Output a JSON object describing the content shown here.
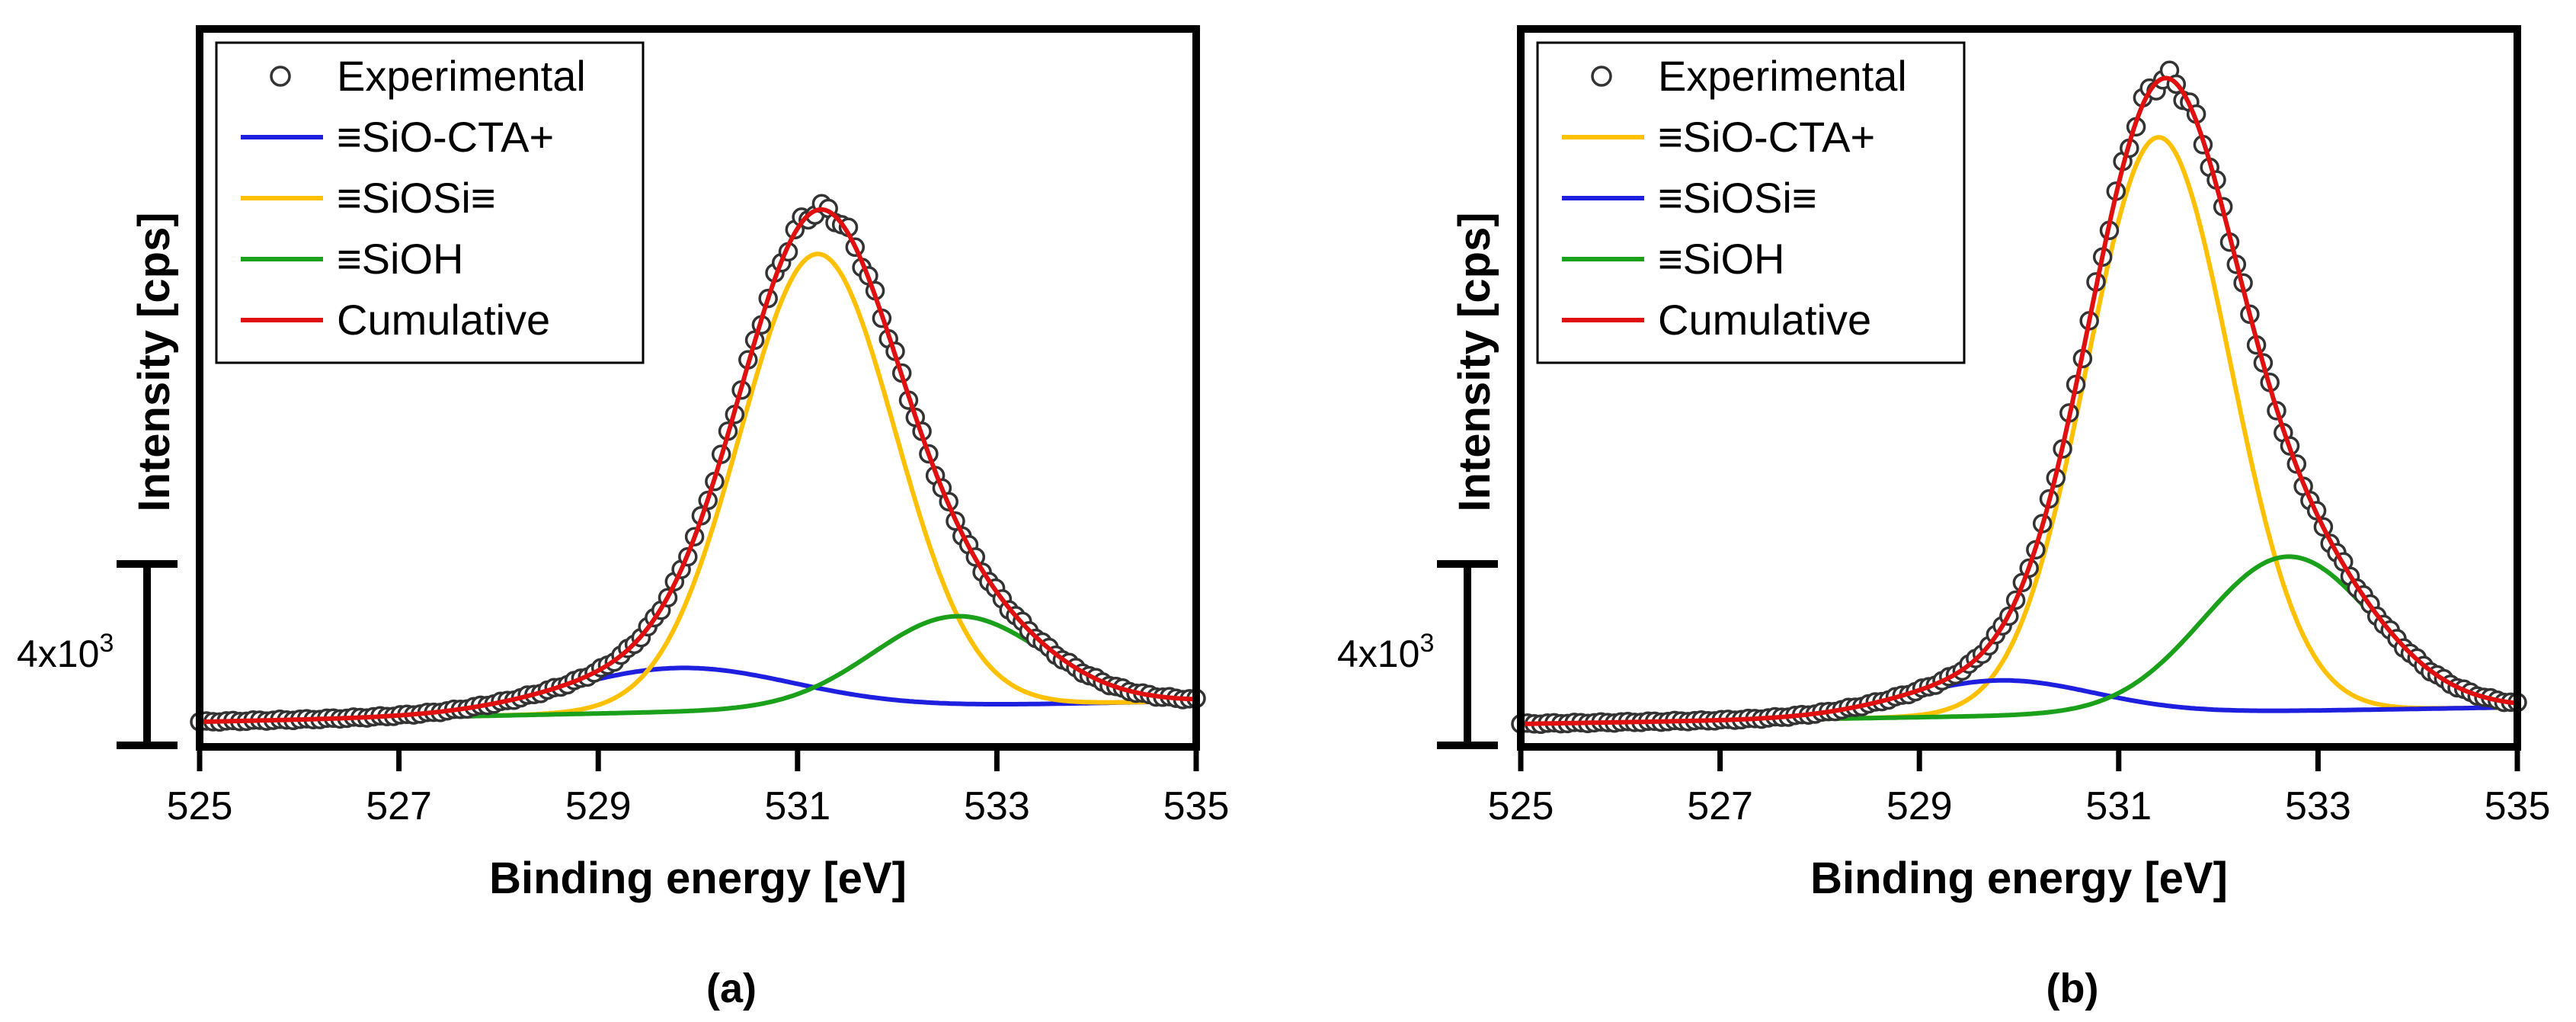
{
  "figure": {
    "panels_label": [
      "(a)",
      "(b)"
    ]
  },
  "chart_data": [
    {
      "type": "line",
      "panel": "(a)",
      "xlabel": "Binding energy [eV]",
      "ylabel": "Intensity [cps]",
      "xlim": [
        525,
        535
      ],
      "ylim": [
        800,
        18000
      ],
      "xticks": [
        "525",
        "527",
        "529",
        "531",
        "533",
        "535"
      ],
      "scale_bar": {
        "label": "4x10",
        "exponent": "3",
        "value": 4000
      },
      "legend": [
        {
          "name": "Experimental",
          "marker": "circle"
        },
        {
          "name": "≡SiO-CTA+",
          "color": "#1f1fe0"
        },
        {
          "name": "≡SiOSi≡",
          "color": "#ffc000"
        },
        {
          "name": "≡SiOH",
          "color": "#1aa01a"
        },
        {
          "name": "Cumulative",
          "color": "#e01010"
        }
      ],
      "series": [
        {
          "name": "≡SiO-CTA+",
          "color": "#1f1fe0",
          "type": "gaussian",
          "center": 529.8,
          "sigma": 1.15,
          "amplitude": 1050
        },
        {
          "name": "≡SiOSi≡",
          "color": "#ffc000",
          "type": "gaussian",
          "center": 531.2,
          "sigma": 0.78,
          "amplitude": 10900
        },
        {
          "name": "≡SiOH",
          "color": "#1aa01a",
          "type": "gaussian",
          "center": 532.6,
          "sigma": 0.85,
          "amplitude": 2150
        }
      ],
      "baseline": 1400,
      "baseline_slope": 50,
      "experimental_points": 150
    },
    {
      "type": "line",
      "panel": "(b)",
      "xlabel": "Binding energy [eV]",
      "ylabel": "Intensity [cps]",
      "xlim": [
        525,
        535
      ],
      "ylim": [
        800,
        18000
      ],
      "xticks": [
        "525",
        "527",
        "529",
        "531",
        "533",
        "535"
      ],
      "scale_bar": {
        "label": "4x10",
        "exponent": "3",
        "value": 4000
      },
      "legend": [
        {
          "name": "Experimental",
          "marker": "circle"
        },
        {
          "name": "≡SiO-CTA+",
          "color": "#ffc000"
        },
        {
          "name": "≡SiOSi≡",
          "color": "#1f1fe0"
        },
        {
          "name": "≡SiOH",
          "color": "#1aa01a"
        },
        {
          "name": "Cumulative",
          "color": "#e01010"
        }
      ],
      "series": [
        {
          "name": "≡SiO-CTA+",
          "color": "#ffc000",
          "type": "gaussian",
          "center": 531.4,
          "sigma": 0.72,
          "amplitude": 13800
        },
        {
          "name": "≡SiOSi≡",
          "color": "#1f1fe0",
          "type": "gaussian",
          "center": 529.8,
          "sigma": 0.95,
          "amplitude": 850
        },
        {
          "name": "≡SiOH",
          "color": "#1aa01a",
          "type": "gaussian",
          "center": 532.7,
          "sigma": 0.85,
          "amplitude": 3700
        }
      ],
      "baseline": 1350,
      "baseline_slope": 40,
      "experimental_points": 150
    }
  ]
}
